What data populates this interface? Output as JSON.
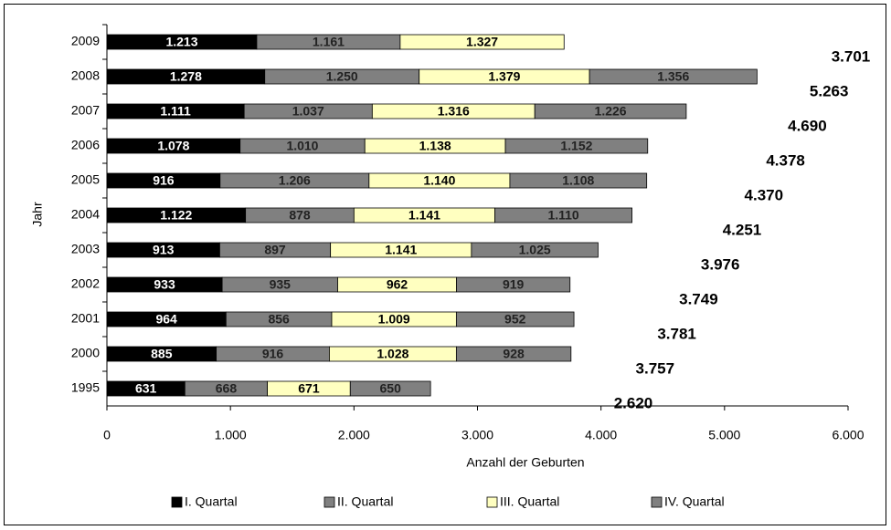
{
  "chart_data": {
    "type": "stacked-bar-horizontal",
    "categories": [
      "2009",
      "2008",
      "2007",
      "2006",
      "2005",
      "2004",
      "2003",
      "2002",
      "2001",
      "2000",
      "1995"
    ],
    "series": [
      {
        "name": "I. Quartal",
        "color": "#000000",
        "values": [
          1213,
          1278,
          1111,
          1078,
          916,
          1122,
          913,
          933,
          964,
          885,
          631
        ],
        "value_labels": [
          "1.213",
          "1.278",
          "1.111",
          "1.078",
          "916",
          "1.122",
          "913",
          "933",
          "964",
          "885",
          "631"
        ]
      },
      {
        "name": "II. Quartal",
        "color": "#808080",
        "values": [
          1161,
          1250,
          1037,
          1010,
          1206,
          878,
          897,
          935,
          856,
          916,
          668
        ],
        "value_labels": [
          "1.161",
          "1.250",
          "1.037",
          "1.010",
          "1.206",
          "878",
          "897",
          "935",
          "856",
          "916",
          "668"
        ]
      },
      {
        "name": "III. Quartal",
        "color": "#ffffc0",
        "values": [
          1327,
          1379,
          1316,
          1138,
          1140,
          1141,
          1141,
          962,
          1009,
          1028,
          671
        ],
        "value_labels": [
          "1.327",
          "1.379",
          "1.316",
          "1.138",
          "1.140",
          "1.141",
          "1.141",
          "962",
          "1.009",
          "1.028",
          "671"
        ]
      },
      {
        "name": "IV. Quartal",
        "color": "#808080",
        "values": [
          null,
          1356,
          1226,
          1152,
          1108,
          1110,
          1025,
          919,
          952,
          928,
          650
        ],
        "value_labels": [
          null,
          "1.356",
          "1.226",
          "1.152",
          "1.108",
          "1.110",
          "1.025",
          "919",
          "952",
          "928",
          "650"
        ]
      }
    ],
    "totals": {
      "values": [
        3701,
        5263,
        4690,
        4378,
        4370,
        4251,
        3976,
        3749,
        3781,
        3757,
        2620
      ],
      "value_labels": [
        "3.701",
        "5.263",
        "4.690",
        "4.378",
        "4.370",
        "4.251",
        "3.976",
        "3.749",
        "3.781",
        "3.757",
        "2.620"
      ]
    },
    "xlabel": "Anzahl der Geburten",
    "ylabel": "Jahr",
    "xlim": [
      0,
      6000
    ],
    "xticks": [
      0,
      {
        "value": 1000,
        "label": "1.000"
      },
      {
        "value": 2000,
        "label": "2.000"
      },
      {
        "value": 3000,
        "label": "3.000"
      },
      {
        "value": 4000,
        "label": "4.000"
      },
      {
        "value": 5000,
        "label": "5.000"
      },
      {
        "value": 6000,
        "label": "6.000"
      }
    ],
    "legend": "bottom"
  }
}
